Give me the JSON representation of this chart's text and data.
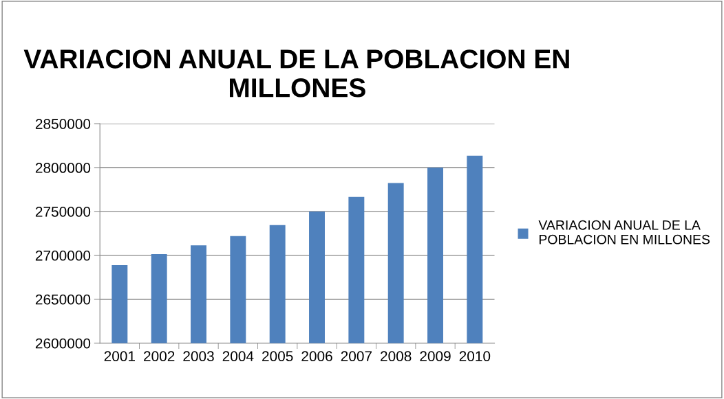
{
  "chart_data": {
    "type": "bar",
    "title": "VARIACION ANUAL DE LA POBLACION EN\nMILLONES",
    "categories": [
      "2001",
      "2002",
      "2003",
      "2004",
      "2005",
      "2006",
      "2007",
      "2008",
      "2009",
      "2010"
    ],
    "series": [
      {
        "name": "VARIACION ANUAL DE LA\nPOBLACION EN MILLONES",
        "color": "#4f81bd",
        "values": [
          2689000,
          2701500,
          2711500,
          2722000,
          2734500,
          2750000,
          2766500,
          2782500,
          2800000,
          2813500
        ]
      }
    ],
    "ylim": [
      2600000,
      2850000
    ],
    "yticks": [
      2600000,
      2650000,
      2700000,
      2750000,
      2800000,
      2850000
    ],
    "grid": "y",
    "legend": "right"
  }
}
